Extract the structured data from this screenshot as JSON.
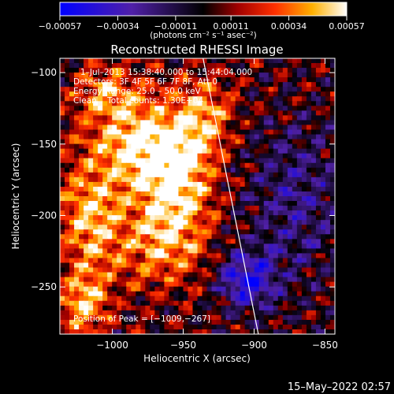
{
  "chart_data": {
    "type": "heatmap",
    "title": "Reconstructed RHESSI Image",
    "xlabel": "Heliocentric X (arcsec)",
    "ylabel": "Heliocentric Y (arcsec)",
    "xlim": [
      -1037,
      -843
    ],
    "ylim": [
      -283,
      -90
    ],
    "xticks": [
      {
        "value": -1000,
        "label": "−1000"
      },
      {
        "value": -950,
        "label": "−950"
      },
      {
        "value": -900,
        "label": "−900"
      },
      {
        "value": -850,
        "label": "−850"
      }
    ],
    "yticks": [
      {
        "value": -100,
        "label": "−100"
      },
      {
        "value": -150,
        "label": "−150"
      },
      {
        "value": -200,
        "label": "−200"
      },
      {
        "value": -250,
        "label": "−250"
      }
    ],
    "colorbar": {
      "min": -0.00057,
      "max": 0.00057,
      "ticks": [
        {
          "value": -0.00057,
          "label": "−0.00057"
        },
        {
          "value": -0.00034,
          "label": "−0.00034"
        },
        {
          "value": -0.00011,
          "label": "−0.00011"
        },
        {
          "value": 0.00011,
          "label": "0.00011"
        },
        {
          "value": 0.00034,
          "label": "0.00034"
        },
        {
          "value": 0.00057,
          "label": "0.00057"
        }
      ],
      "unit_label": "(photons cm⁻² s⁻¹ asec⁻²)"
    },
    "annotations": [
      "1–Jul–2013 15:38:40.000 to 15:44:04.000",
      "Detectors: 3F 4F 5F 6F 7F 8F, Att 0",
      "Energy Range: 25.0 – 50.0 keV",
      "Clean    Total counts: 1.30E+04"
    ],
    "peak_label": "Position of Peak = [−1009,−267]",
    "peak": {
      "x": -1009,
      "y": -267
    },
    "limb_line": [
      {
        "x": -936,
        "y": -90
      },
      {
        "x": -897,
        "y": -283
      }
    ],
    "emission_sources": [
      {
        "x": -955,
        "y": -170,
        "sx": 18,
        "sy": 28,
        "amp": 0.00055
      },
      {
        "x": -985,
        "y": -150,
        "sx": 20,
        "sy": 22,
        "amp": 0.00042
      },
      {
        "x": -1015,
        "y": -200,
        "sx": 16,
        "sy": 30,
        "amp": 0.0004
      },
      {
        "x": -965,
        "y": -220,
        "sx": 22,
        "sy": 20,
        "amp": 0.00034
      },
      {
        "x": -1005,
        "y": -115,
        "sx": 16,
        "sy": 14,
        "amp": 0.0003
      },
      {
        "x": -1020,
        "y": -262,
        "sx": 12,
        "sy": 16,
        "amp": 0.0004
      },
      {
        "x": -935,
        "y": -130,
        "sx": 14,
        "sy": 18,
        "amp": 0.00032
      },
      {
        "x": -905,
        "y": -245,
        "sx": 14,
        "sy": 14,
        "amp": -0.0005
      },
      {
        "x": -870,
        "y": -190,
        "sx": 25,
        "sy": 40,
        "amp": -0.00025
      }
    ]
  },
  "footer": {
    "timestamp": "15–May–2022 02:57"
  }
}
